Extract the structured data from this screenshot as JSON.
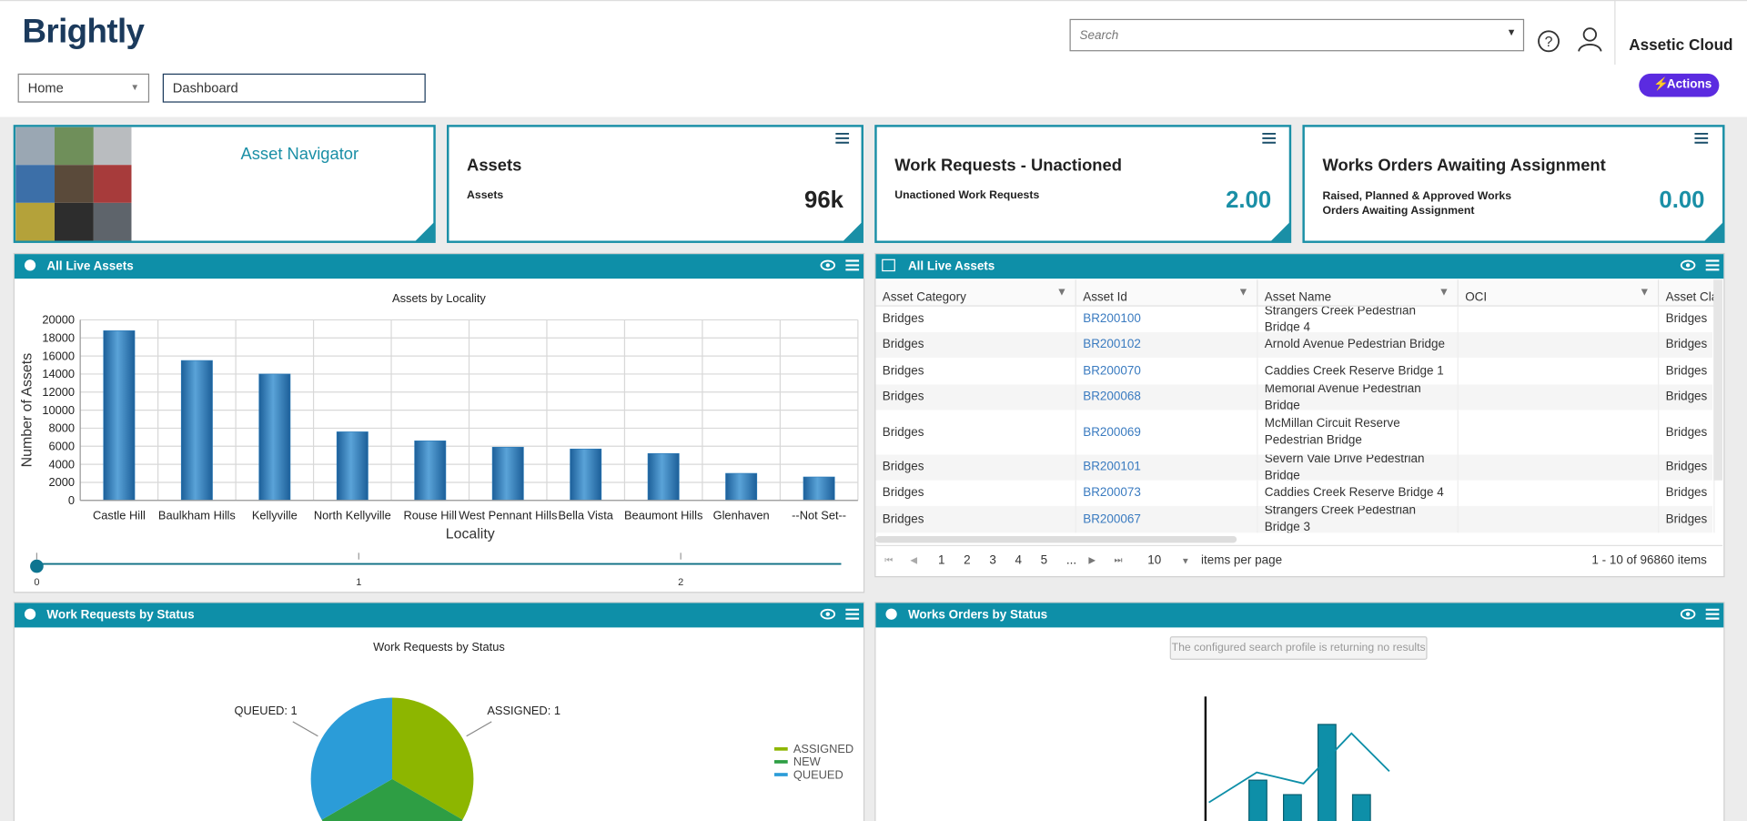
{
  "header": {
    "logo": "Brightly",
    "search_placeholder": "Search",
    "org_name": "Assetic Cloud",
    "actions": "Actions"
  },
  "nav": {
    "page_select": "Home",
    "dashboard_name": "Dashboard"
  },
  "tiles": [
    {
      "title": "Asset Navigator"
    },
    {
      "title": "Assets",
      "label": "Assets",
      "value": "96k"
    },
    {
      "title": "Work Requests - Unactioned",
      "label": "Unactioned Work Requests",
      "value": "2.00"
    },
    {
      "title": "Works Orders Awaiting Assignment",
      "label": "Raised, Planned & Approved Works Orders Awaiting Assignment",
      "value": "0.00"
    }
  ],
  "panels": [
    "All Live Assets",
    "All Live Assets",
    "Work Requests by Status",
    "Works Orders by Status"
  ],
  "chart_data": [
    {
      "type": "bar",
      "title": "Assets by Locality",
      "x_label": "Locality",
      "y_label": "Number of Assets",
      "categories": [
        "Castle Hill",
        "Baulkham Hills",
        "Kellyville",
        "North Kellyville",
        "Rouse Hill",
        "West Pennant Hills",
        "Bella Vista",
        "Beaumont Hills",
        "Glenhaven",
        "--Not Set--"
      ],
      "values": [
        18800,
        15500,
        14000,
        7600,
        6600,
        5900,
        5700,
        5200,
        3000,
        2600
      ],
      "color": "#2a7ab8",
      "ylim": [
        0,
        20000
      ],
      "yticks": [
        0,
        2000,
        4000,
        6000,
        8000,
        10000,
        12000,
        14000,
        16000,
        18000,
        20000
      ],
      "grid": true,
      "slider_ticks": [
        0,
        1,
        2
      ]
    },
    {
      "type": "pie",
      "title": "Work Requests by Status",
      "categories": [
        "ASSIGNED",
        "NEW",
        "QUEUED"
      ],
      "values": [
        1,
        1,
        1
      ],
      "value_labels": [
        "ASSIGNED: 1",
        null,
        "QUEUED: 1"
      ],
      "colors": [
        "#8db600",
        "#2e9e44",
        "#2b9cd8"
      ]
    }
  ],
  "table": {
    "columns": [
      "Asset Category",
      "Asset Id",
      "Asset Name",
      "OCI",
      "Asset Clas"
    ],
    "rows": [
      [
        "Bridges",
        "BR200100",
        "Strangers Creek Pedestrian Bridge 4",
        "",
        "Bridges"
      ],
      [
        "Bridges",
        "BR200102",
        "Arnold Avenue Pedestrian Bridge",
        "",
        "Bridges"
      ],
      [
        "Bridges",
        "BR200070",
        "Caddies Creek Reserve Bridge 1",
        "",
        "Bridges"
      ],
      [
        "Bridges",
        "BR200068",
        "Memorial Avenue Pedestrian Bridge",
        "",
        "Bridges"
      ],
      [
        "Bridges",
        "BR200069",
        "McMillan Circuit Reserve Pedestrian Bridge",
        "",
        "Bridges"
      ],
      [
        "Bridges",
        "BR200101",
        "Severn Vale Drive Pedestrian Bridge",
        "",
        "Bridges"
      ],
      [
        "Bridges",
        "BR200073",
        "Caddies Creek Reserve Bridge 4",
        "",
        "Bridges"
      ],
      [
        "Bridges",
        "BR200067",
        "Strangers Creek Pedestrian Bridge 3",
        "",
        "Bridges"
      ]
    ]
  },
  "pager": {
    "pages": [
      "1",
      "2",
      "3",
      "4",
      "5",
      "..."
    ],
    "page_size": "10",
    "page_size_label": "items per page",
    "summary": "1 - 10 of 96860 items"
  },
  "works_orders": {
    "message": "The configured search profile is returning no results"
  }
}
